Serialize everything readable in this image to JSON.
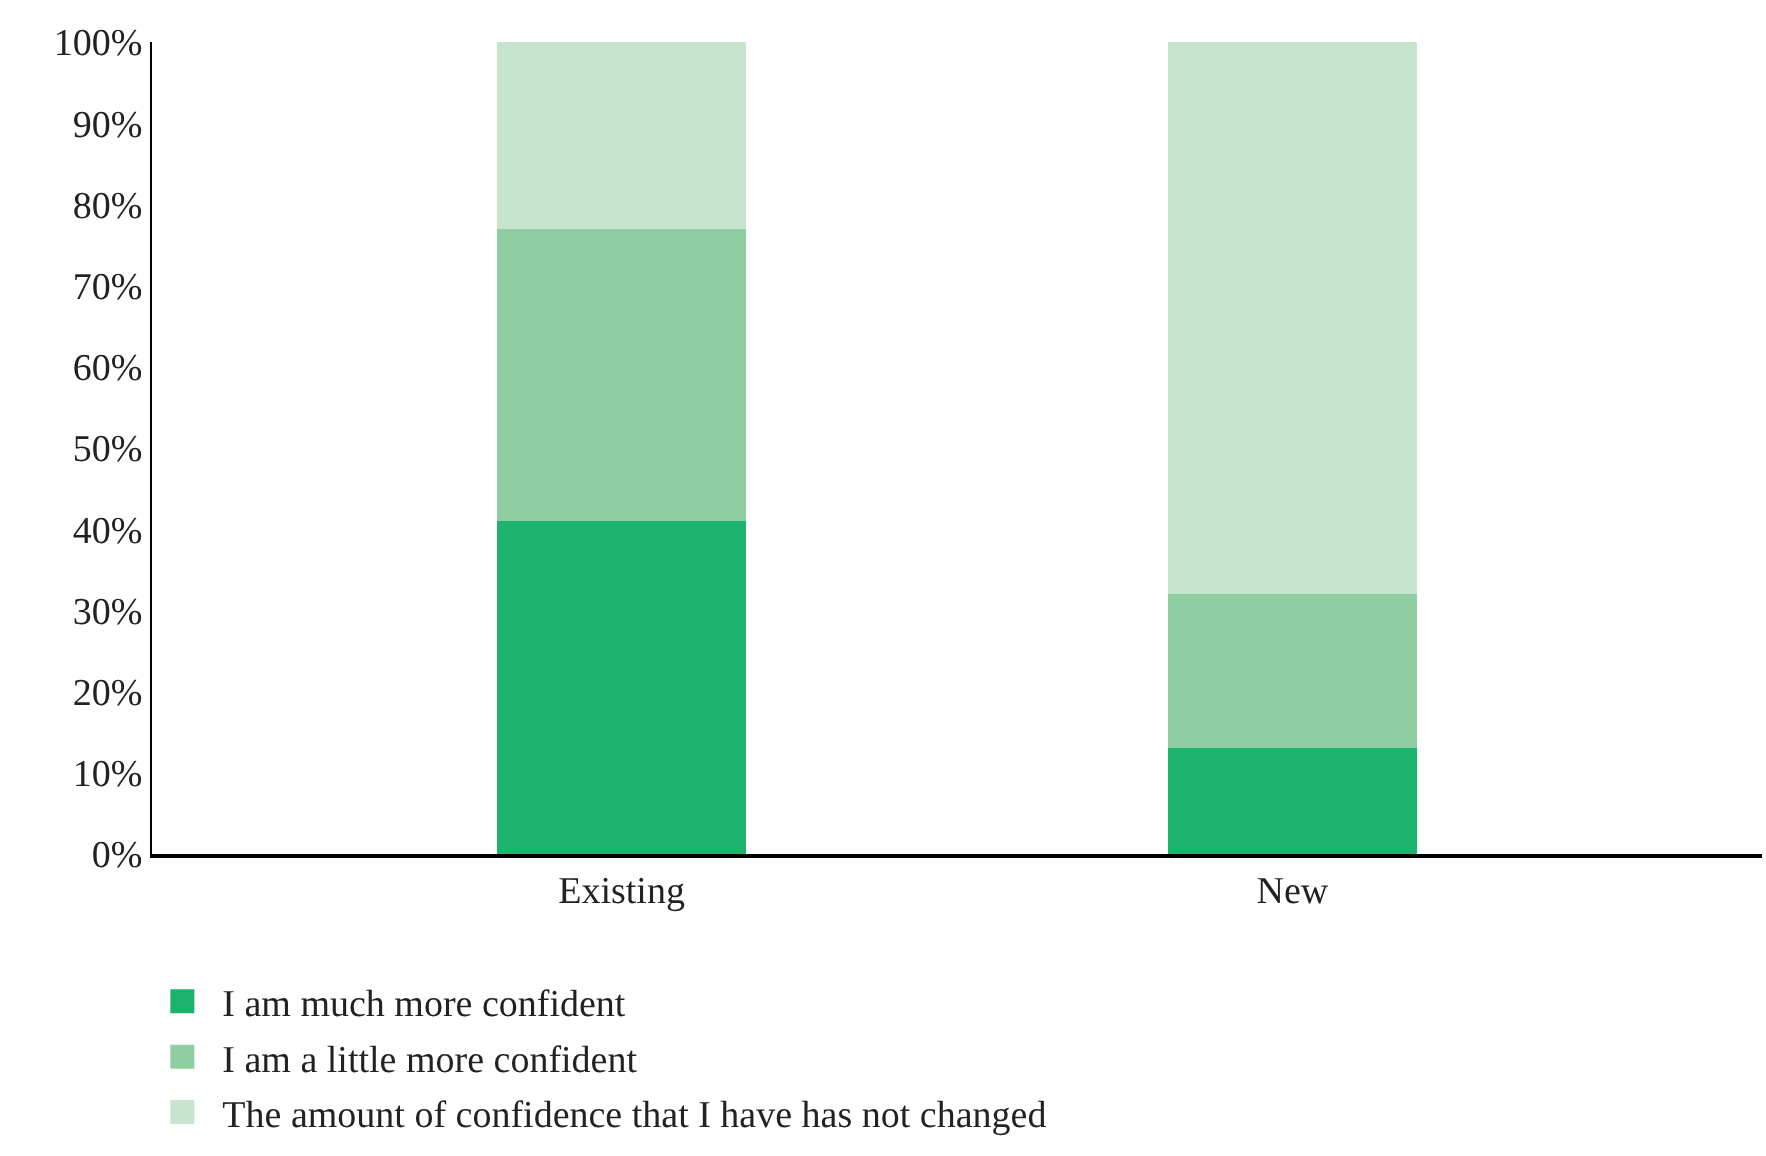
{
  "chart_data": {
    "type": "bar",
    "stacked": true,
    "categories": [
      "Existing",
      "New"
    ],
    "series": [
      {
        "name": "I am much more confident",
        "color": "#1cb46c",
        "values": [
          41,
          13
        ]
      },
      {
        "name": "I am a little more confident",
        "color": "#8ecea0",
        "values": [
          36,
          19
        ]
      },
      {
        "name": "The amount of confidence that I have has not changed",
        "color": "#c6e4ce",
        "values": [
          23,
          68
        ]
      }
    ],
    "ylim": [
      0,
      100
    ],
    "yticks": [
      {
        "value": 0,
        "label": "0%"
      },
      {
        "value": 10,
        "label": "10%"
      },
      {
        "value": 20,
        "label": "20%"
      },
      {
        "value": 30,
        "label": "30%"
      },
      {
        "value": 40,
        "label": "40%"
      },
      {
        "value": 50,
        "label": "50%"
      },
      {
        "value": 60,
        "label": "60%"
      },
      {
        "value": 70,
        "label": "70%"
      },
      {
        "value": 80,
        "label": "80%"
      },
      {
        "value": 90,
        "label": "90%"
      },
      {
        "value": 100,
        "label": "100%"
      }
    ],
    "grid": false,
    "legend": "bottom left"
  }
}
